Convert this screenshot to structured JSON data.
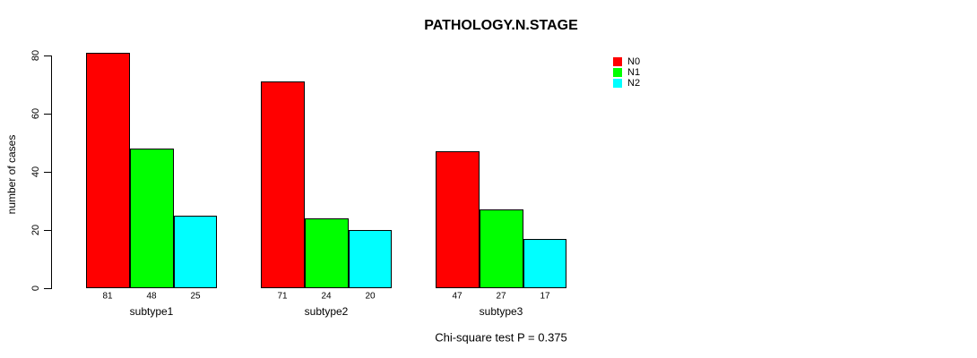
{
  "figure": {
    "title": "PATHOLOGY.N.STAGE",
    "annotation": "Chi-square test P = 0.375"
  },
  "chart_data": {
    "type": "bar",
    "title": "PATHOLOGY.N.STAGE",
    "categories": [
      "subtype1",
      "subtype2",
      "subtype3"
    ],
    "series": [
      {
        "name": "N0",
        "color": "#ff0000",
        "values": [
          81,
          71,
          47
        ]
      },
      {
        "name": "N1",
        "color": "#00ff00",
        "values": [
          48,
          24,
          27
        ]
      },
      {
        "name": "N2",
        "color": "#00ffff",
        "values": [
          25,
          20,
          17
        ]
      }
    ],
    "xlabel": "",
    "ylabel": "number of cases",
    "ylim": [
      0,
      80
    ],
    "yticks": [
      0,
      20,
      40,
      60,
      80
    ],
    "bar_value_labels": true,
    "grid": false,
    "legend_position": "top-right",
    "legend_entries": [
      "N0",
      "N1",
      "N2"
    ],
    "annotation": "Chi-square test P = 0.375"
  }
}
